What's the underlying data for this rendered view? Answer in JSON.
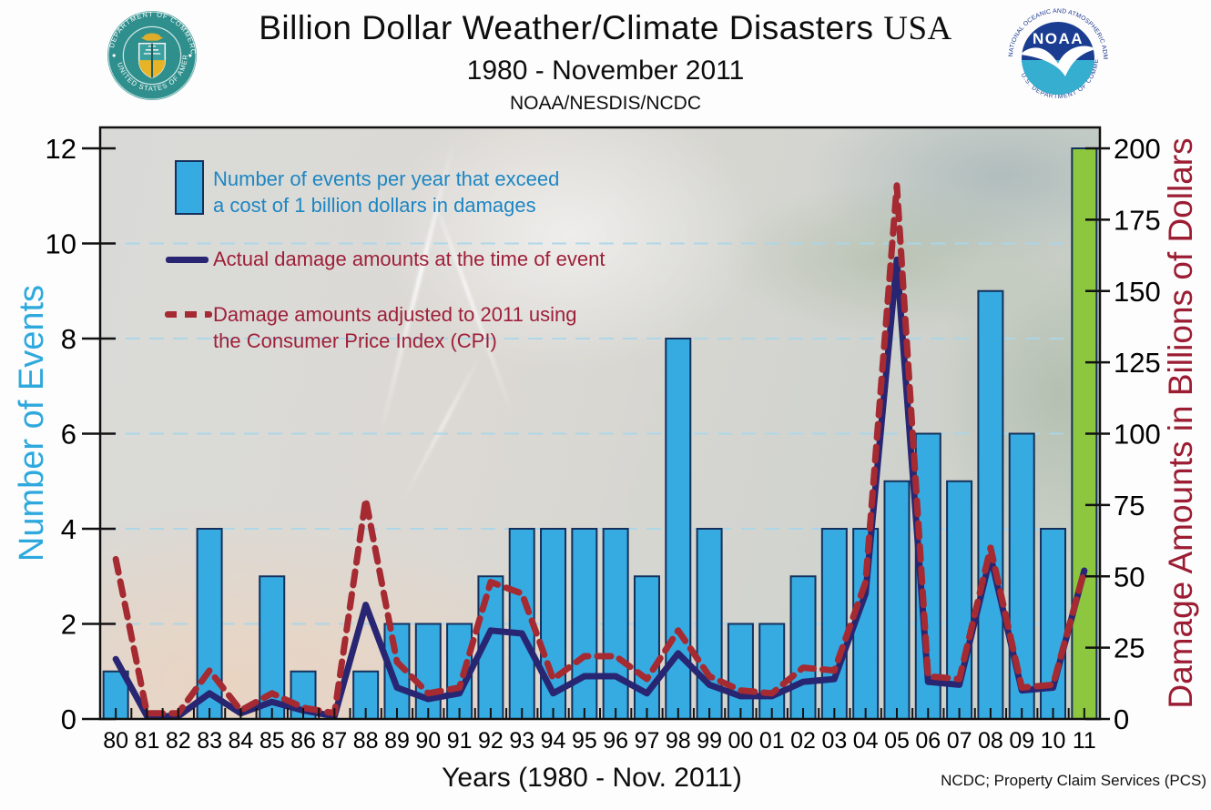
{
  "header": {
    "title_main": "Billion Dollar Weather/Climate Disasters",
    "title_suffix": "USA",
    "subtitle": "1980 - November 2011",
    "org": "NOAA/NESDIS/NCDC",
    "left_logo": {
      "name": "us-department-of-commerce-seal",
      "top_text": "DEPARTMENT OF COMMERCE",
      "bottom_text": "UNITED STATES OF AMERICA"
    },
    "right_logo": {
      "name": "noaa-logo",
      "label": "NOAA",
      "top_text": "NATIONAL OCEANIC AND ATMOSPHERIC ADMINISTRATION",
      "bottom_text": "U.S. DEPARTMENT OF COMMERCE"
    }
  },
  "legend": {
    "bars_line1": "Number of events per year that exceed",
    "bars_line2": "a cost of 1 billion dollars in damages",
    "actual": "Actual damage amounts at the time of event",
    "adjusted_line1": "Damage amounts adjusted to 2011 using",
    "adjusted_line2": "the Consumer Price Index (CPI)"
  },
  "axes": {
    "left_title": "Number of Events",
    "right_title": "Damage Amounts in Billions of Dollars",
    "x_title": "Years (1980 - Nov. 2011)",
    "left_ticks": [
      0,
      2,
      4,
      6,
      8,
      10,
      12
    ],
    "right_ticks": [
      0,
      25,
      50,
      75,
      100,
      125,
      150,
      175,
      200
    ],
    "grid_values": [
      2,
      4,
      6,
      8,
      10
    ]
  },
  "source": "NCDC; Property Claim Services (PCS)",
  "colors": {
    "bar_fill": "#36abe1",
    "bar_last_fill": "#8dc63f",
    "bar_border": "#14305c",
    "line_actual": "#282672",
    "line_adjusted": "#a52a32",
    "grid": "#a9d7ea",
    "axis": "#111111",
    "left_axis_title": "#2ea9de",
    "right_axis_title": "#9c1d33",
    "legend_blue_text": "#1d86c3",
    "legend_red_text": "#9e1f38"
  },
  "chart_data": {
    "type": "bar+line",
    "title": "Billion Dollar Weather/Climate Disasters USA, 1980 - November 2011, NOAA/NESDIS/NCDC",
    "xlabel": "Years (1980 - Nov. 2011)",
    "ylabel_left": "Number of Events",
    "ylabel_right": "Damage Amounts in Billions of Dollars",
    "left_range": [
      0,
      12
    ],
    "right_range": [
      0,
      200
    ],
    "grid": "horizontal-dashed",
    "legend_position": "top-left-inside",
    "categories": [
      "80",
      "81",
      "82",
      "83",
      "84",
      "85",
      "86",
      "87",
      "88",
      "89",
      "90",
      "91",
      "92",
      "93",
      "94",
      "95",
      "96",
      "97",
      "98",
      "99",
      "00",
      "01",
      "02",
      "03",
      "04",
      "05",
      "06",
      "07",
      "08",
      "09",
      "10",
      "11"
    ],
    "series": [
      {
        "name": "Number of events per year that exceed a cost of 1 billion dollars in damages",
        "type": "bar",
        "axis": "left",
        "color": "#36abe1",
        "last_bar_color": "#8dc63f",
        "values": [
          1,
          0,
          0,
          4,
          0,
          3,
          1,
          0,
          1,
          2,
          2,
          2,
          3,
          4,
          4,
          4,
          4,
          3,
          8,
          4,
          2,
          2,
          3,
          4,
          4,
          5,
          6,
          5,
          9,
          6,
          4,
          12
        ]
      },
      {
        "name": "Actual damage amounts at the time of event",
        "type": "line",
        "axis": "right",
        "color": "#282672",
        "dashed": false,
        "values": [
          21,
          1,
          1,
          9,
          2,
          6,
          3,
          1,
          40,
          11,
          7,
          9,
          31,
          30,
          9,
          15,
          15,
          9,
          23,
          12,
          8,
          8,
          13,
          14,
          44,
          161,
          13,
          12,
          57,
          10,
          11,
          52
        ]
      },
      {
        "name": "Damage amounts adjusted to 2011 using the Consumer Price Index (CPI)",
        "type": "line",
        "axis": "right",
        "color": "#a52a32",
        "dashed": true,
        "values": [
          56,
          2,
          2,
          17,
          3,
          9,
          4,
          2,
          77,
          20,
          9,
          11,
          48,
          44,
          14,
          22,
          22,
          14,
          31,
          15,
          10,
          9,
          18,
          17,
          48,
          187,
          15,
          14,
          60,
          11,
          12,
          52
        ]
      }
    ]
  }
}
